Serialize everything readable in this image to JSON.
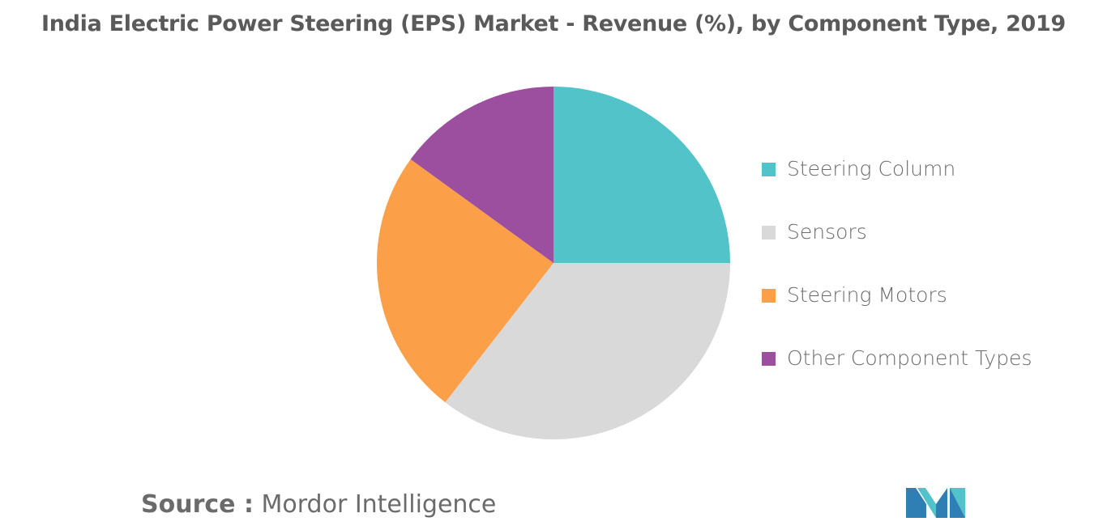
{
  "chart_data": {
    "type": "pie",
    "title": "India Electric Power Steering (EPS) Market - Revenue (%), by Component Type, 2019",
    "categories": [
      "Steering Column",
      "Sensors",
      "Steering Motors",
      "Other Component Types"
    ],
    "values": [
      25,
      35.5,
      24.5,
      15
    ],
    "colors": [
      "#52c4c9",
      "#d9d9d9",
      "#fba048",
      "#9b4f9e"
    ],
    "legend_position": "right",
    "start_angle": "12 o'clock",
    "direction": "clockwise"
  },
  "source": {
    "key": "Source :",
    "value": "Mordor Intelligence"
  },
  "logo": {
    "icon": "mordor-intelligence-logo",
    "colors": [
      "#2f7fb5",
      "#53c3cb"
    ]
  }
}
